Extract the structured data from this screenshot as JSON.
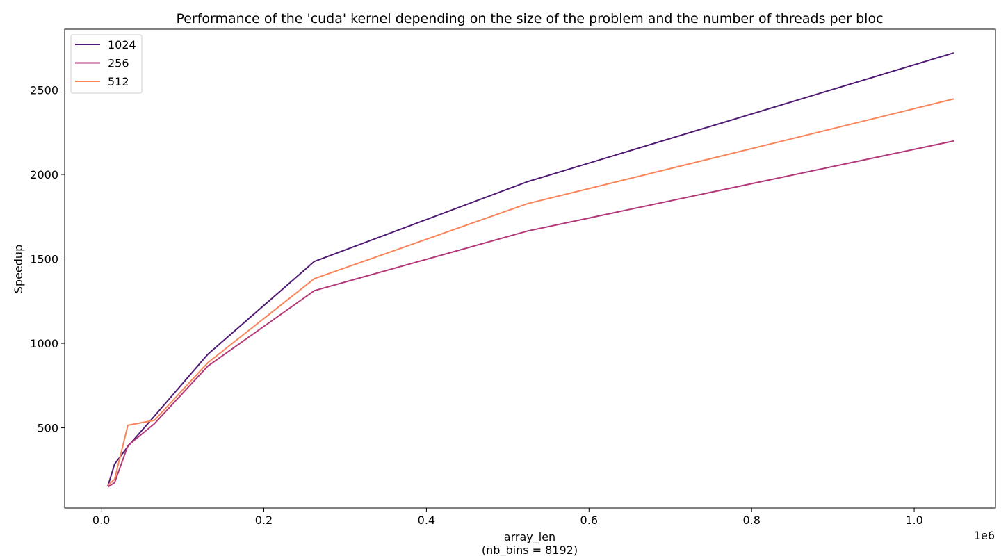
{
  "chart_data": {
    "type": "line",
    "title": "Performance of the 'cuda' kernel depending on the size of the problem and the number of threads per bloc",
    "xlabel_line1": "array_len",
    "xlabel_line2": "(nb_bins = 8192)",
    "x_offset_text": "1e6",
    "ylabel": "Speedup",
    "x": [
      8192,
      16384,
      32768,
      65536,
      131072,
      262144,
      524288,
      1048576
    ],
    "xlim": [
      -0.045,
      1.1
    ],
    "ylim": [
      25,
      2860
    ],
    "x_scale_factor": 1000000,
    "x_ticks": [
      0.0,
      0.2,
      0.4,
      0.6,
      0.8,
      1.0
    ],
    "x_tick_labels": [
      "0.0",
      "0.2",
      "0.4",
      "0.6",
      "0.8",
      "1.0"
    ],
    "y_ticks": [
      500,
      1000,
      1500,
      2000,
      2500
    ],
    "y_tick_labels": [
      "500",
      "1000",
      "1500",
      "2000",
      "2500"
    ],
    "grid": false,
    "legend_position": "top-left",
    "series": [
      {
        "name": "1024",
        "color": "#4f1a73",
        "values": [
          155,
          285,
          390,
          570,
          935,
          1485,
          1957,
          2720
        ]
      },
      {
        "name": "256",
        "color": "#b3387a",
        "values": [
          150,
          175,
          395,
          525,
          865,
          1312,
          1665,
          2198
        ]
      },
      {
        "name": "512",
        "color": "#f9845a",
        "values": [
          160,
          195,
          515,
          545,
          885,
          1383,
          1827,
          2447
        ]
      }
    ]
  }
}
